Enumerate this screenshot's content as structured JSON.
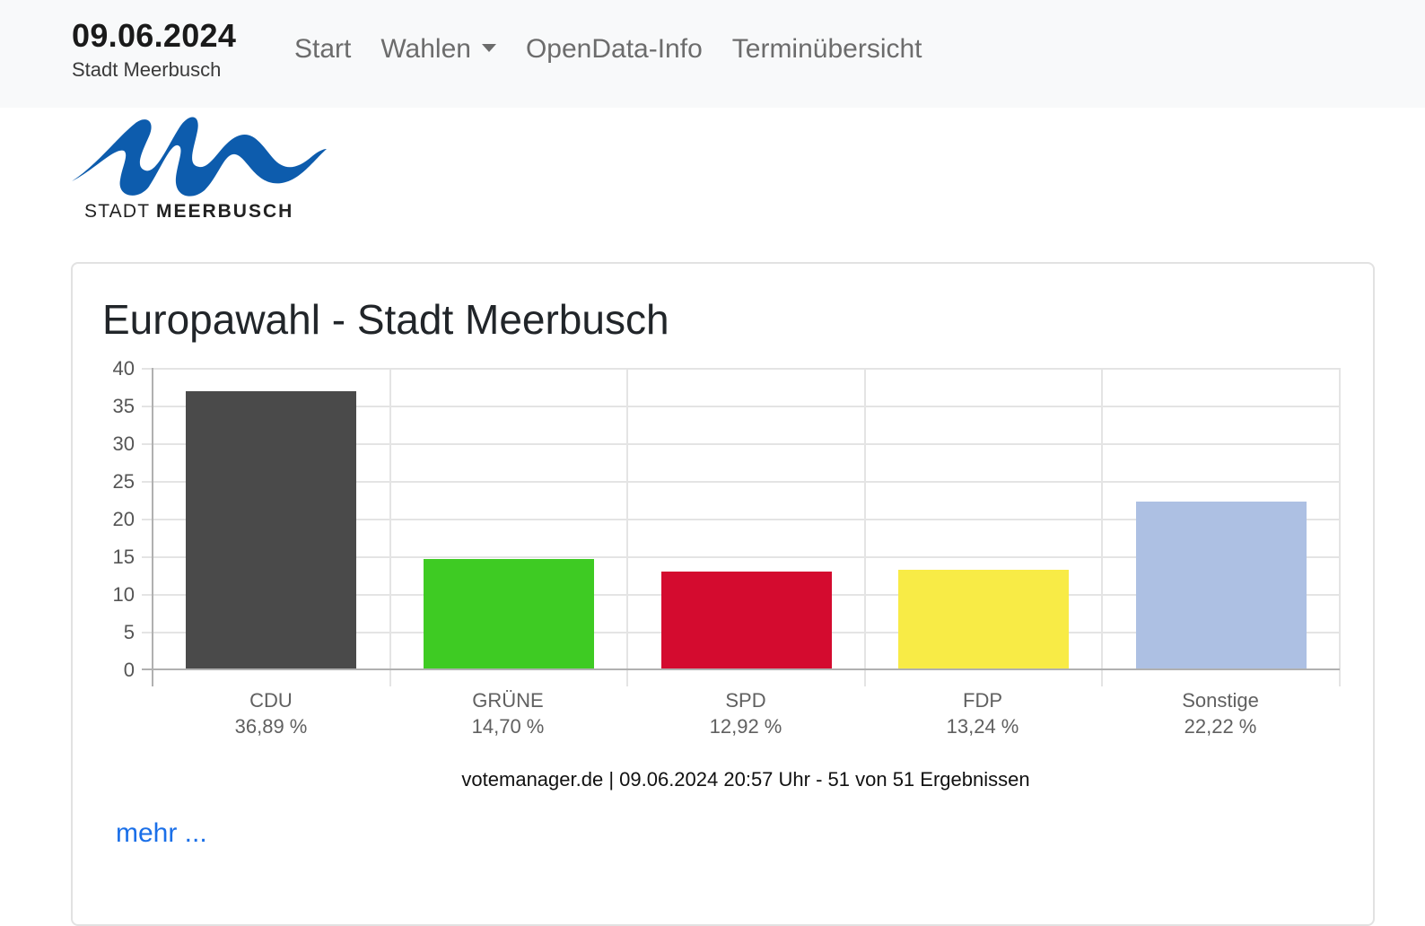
{
  "navbar": {
    "brand_date": "09.06.2024",
    "brand_city": "Stadt Meerbusch",
    "items": [
      {
        "label": "Start",
        "has_dropdown": false
      },
      {
        "label": "Wahlen",
        "has_dropdown": true
      },
      {
        "label": "OpenData-Info",
        "has_dropdown": false
      },
      {
        "label": "Terminübersicht",
        "has_dropdown": false
      }
    ]
  },
  "logo": {
    "text_thin": "STADT",
    "text_bold": "MEERBUSCH",
    "color": "#0d5cad"
  },
  "card": {
    "title": "Europawahl - Stadt Meerbusch",
    "source_line": "votemanager.de | 09.06.2024 20:57 Uhr - 51 von 51 Ergebnissen",
    "more_link": "mehr ..."
  },
  "chart_data": {
    "type": "bar",
    "title": "Europawahl - Stadt Meerbusch",
    "xlabel": "",
    "ylabel": "",
    "ylim": [
      0,
      40
    ],
    "yticks": [
      0,
      5,
      10,
      15,
      20,
      25,
      30,
      35,
      40
    ],
    "grid": true,
    "legend": "none",
    "categories": [
      "CDU",
      "GRÜNE",
      "SPD",
      "FDP",
      "Sonstige"
    ],
    "values": [
      36.89,
      14.7,
      12.92,
      13.24,
      22.22
    ],
    "value_labels": [
      "36,89 %",
      "14,70 %",
      "12,92 %",
      "13,24 %",
      "22,22 %"
    ],
    "colors": [
      "#4a4a4a",
      "#3ecb23",
      "#d40b2f",
      "#f8eb46",
      "#adc0e3"
    ],
    "annotation": "votemanager.de | 09.06.2024 20:57 Uhr - 51 von 51 Ergebnissen"
  }
}
